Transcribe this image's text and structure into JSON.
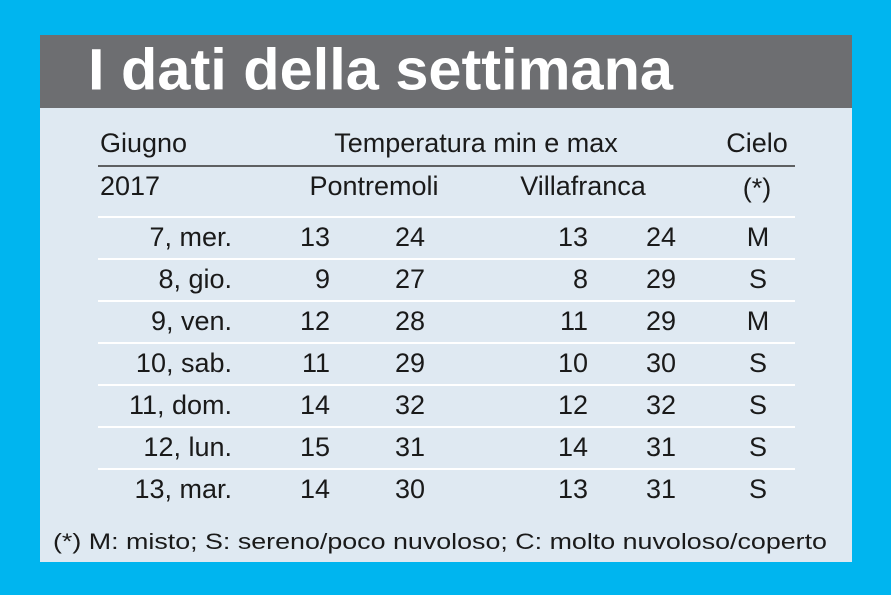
{
  "header": {
    "title": "I dati della settimana"
  },
  "table": {
    "head1": [
      "Giugno",
      "Temperatura min e max",
      "Cielo"
    ],
    "head2": [
      "2017",
      "Pontremoli",
      "Villafranca",
      "(*)"
    ],
    "rows": [
      [
        "7, mer.",
        13,
        24,
        13,
        24,
        "M"
      ],
      [
        "8, gio.",
        9,
        27,
        8,
        29,
        "S"
      ],
      [
        "9, ven.",
        12,
        28,
        11,
        29,
        "M"
      ],
      [
        "10, sab.",
        11,
        29,
        10,
        30,
        "S"
      ],
      [
        "11, dom.",
        14,
        32,
        12,
        32,
        "S"
      ],
      [
        "12, lun.",
        15,
        31,
        14,
        31,
        "S"
      ],
      [
        "13, mar.",
        14,
        30,
        13,
        31,
        "S"
      ]
    ]
  },
  "footnote": "(*) M: misto; S: sereno/poco nuvoloso; C: molto nuvoloso/coperto"
}
